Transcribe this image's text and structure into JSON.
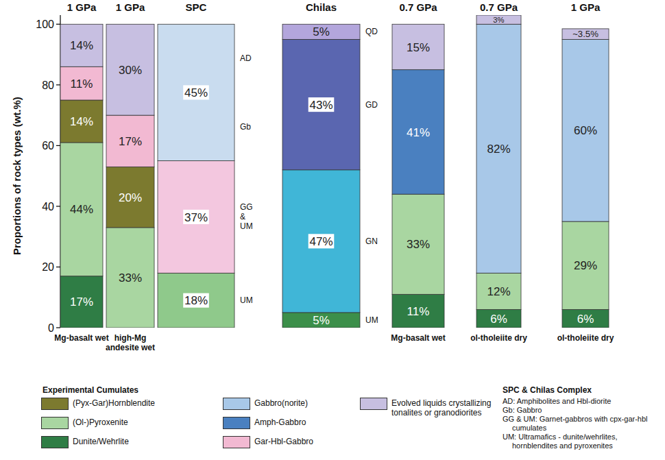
{
  "chart_data": {
    "type": "bar",
    "stacked": true,
    "data_labels": true,
    "y_label": "Proportions of rock types (wt.%)",
    "ylim": [
      0,
      103
    ],
    "yticks": [
      0,
      20,
      40,
      60,
      80,
      100
    ],
    "columns": [
      {
        "title": "1 GPa",
        "label": "Mg-basalt wet",
        "values": [
          17,
          44,
          14,
          11,
          14
        ],
        "value_labels": [
          "17%",
          "44%",
          "14%",
          "11%",
          "14%"
        ],
        "colors": [
          "#2f7d45",
          "#a9d6a1",
          "#7c7a2f",
          "#f2b9d2",
          "#c7bfe1"
        ]
      },
      {
        "title": "1 GPa",
        "label": "high-Mg andesite wet",
        "values": [
          33,
          20,
          17,
          30
        ],
        "value_labels": [
          "33%",
          "20%",
          "17%",
          "30%"
        ],
        "colors": [
          "#a9d6a1",
          "#7c7a2f",
          "#f2b9d2",
          "#c7bfe1"
        ]
      },
      {
        "title": "SPC",
        "values": [
          18,
          37,
          45
        ],
        "value_labels": [
          "18%",
          "37%",
          "45%"
        ],
        "colors": [
          "#8fc98b",
          "#f3c7df",
          "#c9dcef"
        ],
        "codes": [
          [
            "UM"
          ],
          [
            "GG & UM"
          ],
          [
            "Gb",
            "AD"
          ]
        ]
      },
      {
        "title": "Chilas",
        "values": [
          5,
          47,
          43,
          5
        ],
        "value_labels": [
          "5%",
          "47%",
          "43%",
          "5%"
        ],
        "colors": [
          "#3c8f4a",
          "#40b6d7",
          "#5a66b0",
          "#b3a6dc"
        ],
        "codes": [
          [
            "UM"
          ],
          [
            "GN"
          ],
          [
            "GD"
          ],
          [
            "QD"
          ]
        ]
      },
      {
        "title": "0.7 GPa",
        "label": "Mg-basalt wet",
        "values": [
          11,
          33,
          41,
          15
        ],
        "value_labels": [
          "11%",
          "33%",
          "41%",
          "15%"
        ],
        "colors": [
          "#2f7d45",
          "#a9d6a1",
          "#4a80c0",
          "#c7bfe1"
        ]
      },
      {
        "title": "0.7 GPa",
        "label": "ol-tholeiite dry",
        "values": [
          6,
          12,
          82,
          3
        ],
        "value_labels": [
          "6%",
          "12%",
          "82%",
          "3%"
        ],
        "colors": [
          "#2f7d45",
          "#a9d6a1",
          "#a8c8e8",
          "#c7bfe1"
        ]
      },
      {
        "title": "1 GPa",
        "label": "ol-tholeiite dry",
        "values": [
          6,
          29,
          60,
          3.5
        ],
        "value_labels": [
          "6%",
          "29%",
          "60%",
          "~3.5%"
        ],
        "colors": [
          "#2f7d45",
          "#a9d6a1",
          "#a8c8e8",
          "#c7bfe1"
        ]
      }
    ],
    "legend_groups": [
      {
        "title": "Experimental Cumulates",
        "items": [
          {
            "name": "(Pyx-Gar)Hornblendite",
            "color": "#7c7a2f"
          },
          {
            "name": "(Ol-)Pyroxenite",
            "color": "#a9d6a1"
          },
          {
            "name": "Dunite/Wehrlite",
            "color": "#2f7d45"
          },
          {
            "name": "Gabbro(norite)",
            "color": "#a8c8e8"
          },
          {
            "name": "Amph-Gabbro",
            "color": "#4a80c0"
          },
          {
            "name": "Gar-Hbl-Gabbro",
            "color": "#f2b9d2"
          },
          {
            "name": "Evolved liquids crystallizing tonalites or granodiorites",
            "color": "#c7bfe1"
          }
        ]
      },
      {
        "title": "SPC & Chilas Complex",
        "items": [
          "AD: Amphibolites and Hbl-diorite",
          "Gb: Gabbro",
          "GG & UM: Garnet-gabbros with cpx-gar-hbl cumulates",
          "UM: Ultramafics - dunite/wehrlites, hornblendites and pyroxenites"
        ]
      }
    ]
  }
}
